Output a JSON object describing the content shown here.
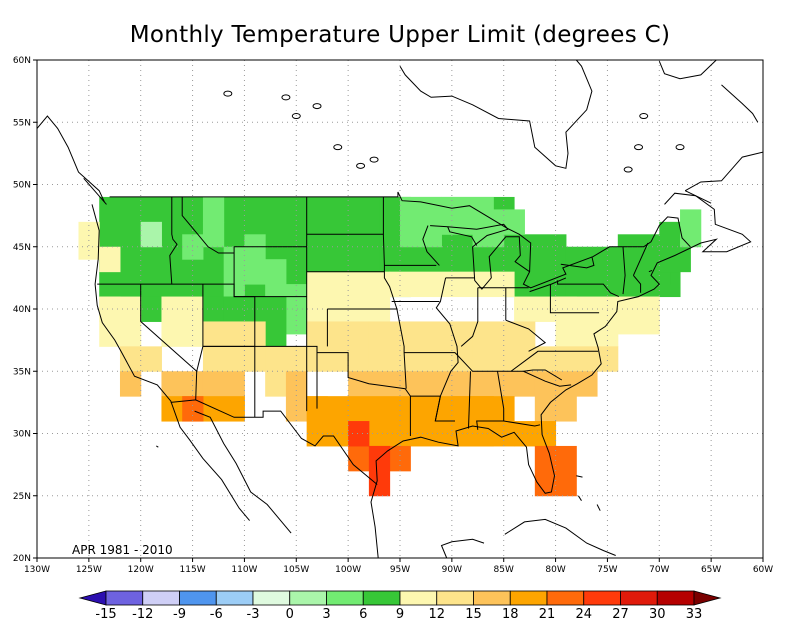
{
  "title": "Monthly Temperature Upper Limit (degrees C)",
  "period_label": "APR 1981 - 2010",
  "map": {
    "lon_range": [
      -130,
      -60
    ],
    "lat_range": [
      20,
      60
    ],
    "lon_ticks": [
      "130W",
      "125W",
      "120W",
      "115W",
      "110W",
      "105W",
      "100W",
      "95W",
      "90W",
      "85W",
      "80W",
      "75W",
      "70W",
      "65W",
      "60W"
    ],
    "lat_ticks": [
      "20N",
      "25N",
      "30N",
      "35N",
      "40N",
      "45N",
      "50N",
      "55N",
      "60N"
    ],
    "grid": "dotted",
    "region": "Contiguous United States",
    "grid_cell_deg": 2
  },
  "colorbar": {
    "labels": [
      "-15",
      "-12",
      "-9",
      "-6",
      "-3",
      "0",
      "3",
      "6",
      "9",
      "12",
      "15",
      "18",
      "21",
      "24",
      "27",
      "30",
      "33"
    ],
    "colors": [
      "#2c0fb0",
      "#6e62e0",
      "#cfcff6",
      "#4f95ee",
      "#9ccdf6",
      "#dffadf",
      "#aaf5aa",
      "#72eb72",
      "#37c737",
      "#fdf7b0",
      "#fde48b",
      "#fdc35a",
      "#fda500",
      "#ff6a0a",
      "#ff3a0a",
      "#e01a0a",
      "#b50000",
      "#7a0000"
    ]
  },
  "legend_colors": {
    "ocean": "#ffffff",
    "outline": "#000000"
  }
}
